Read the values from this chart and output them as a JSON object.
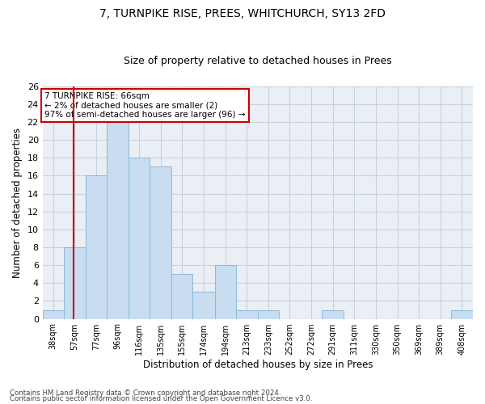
{
  "title1": "7, TURNPIKE RISE, PREES, WHITCHURCH, SY13 2FD",
  "title2": "Size of property relative to detached houses in Prees",
  "xlabel": "Distribution of detached houses by size in Prees",
  "ylabel": "Number of detached properties",
  "bar_values": [
    1,
    8,
    16,
    22,
    18,
    17,
    5,
    3,
    6,
    1,
    1,
    0,
    0,
    1,
    0,
    0,
    0,
    0,
    0,
    1
  ],
  "bin_edges": [
    38,
    57,
    77,
    96,
    116,
    135,
    155,
    174,
    194,
    213,
    233,
    252,
    272,
    291,
    311,
    330,
    350,
    369,
    389,
    408,
    428
  ],
  "bar_color": "#c9ddf0",
  "bar_edge_color": "#8cb8d8",
  "grid_color": "#c8d0dc",
  "background_color": "#eaeff6",
  "red_line_x": 66,
  "annotation_lines": [
    "7 TURNPIKE RISE: 66sqm",
    "← 2% of detached houses are smaller (2)",
    "97% of semi-detached houses are larger (96) →"
  ],
  "annotation_box_color": "#ffffff",
  "annotation_box_edge": "#cc0000",
  "red_line_color": "#cc0000",
  "footer1": "Contains HM Land Registry data © Crown copyright and database right 2024.",
  "footer2": "Contains public sector information licensed under the Open Government Licence v3.0.",
  "ylim": [
    0,
    26
  ],
  "yticks": [
    0,
    2,
    4,
    6,
    8,
    10,
    12,
    14,
    16,
    18,
    20,
    22,
    24,
    26
  ]
}
